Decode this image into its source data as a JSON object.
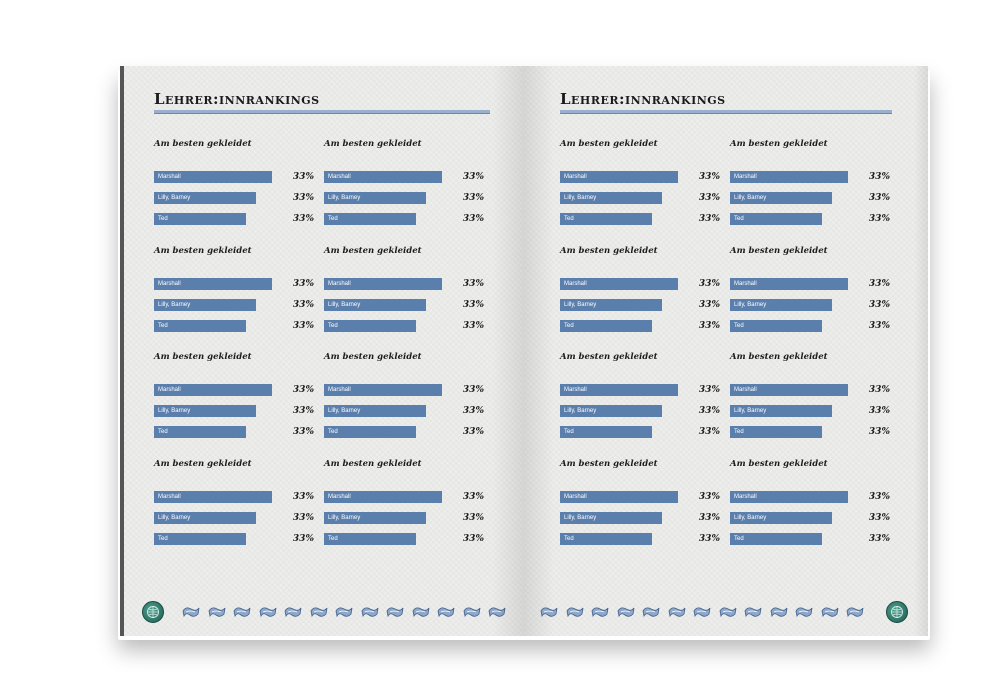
{
  "pages": [
    {
      "title": "Lehrer:innrankings",
      "blocks": [
        {
          "heading": "Am besten gekleidet",
          "items": [
            {
              "name": "Marshall",
              "pct": "33%"
            },
            {
              "name": "Lilly, Barney",
              "pct": "33%"
            },
            {
              "name": "Ted",
              "pct": "33%"
            }
          ]
        },
        {
          "heading": "Am besten gekleidet",
          "items": [
            {
              "name": "Marshall",
              "pct": "33%"
            },
            {
              "name": "Lilly, Barney",
              "pct": "33%"
            },
            {
              "name": "Ted",
              "pct": "33%"
            }
          ]
        },
        {
          "heading": "Am besten gekleidet",
          "items": [
            {
              "name": "Marshall",
              "pct": "33%"
            },
            {
              "name": "Lilly, Barney",
              "pct": "33%"
            },
            {
              "name": "Ted",
              "pct": "33%"
            }
          ]
        },
        {
          "heading": "Am besten gekleidet",
          "items": [
            {
              "name": "Marshall",
              "pct": "33%"
            },
            {
              "name": "Lilly, Barney",
              "pct": "33%"
            },
            {
              "name": "Ted",
              "pct": "33%"
            }
          ]
        },
        {
          "heading": "Am besten gekleidet",
          "items": [
            {
              "name": "Marshall",
              "pct": "33%"
            },
            {
              "name": "Lilly, Barney",
              "pct": "33%"
            },
            {
              "name": "Ted",
              "pct": "33%"
            }
          ]
        },
        {
          "heading": "Am besten gekleidet",
          "items": [
            {
              "name": "Marshall",
              "pct": "33%"
            },
            {
              "name": "Lilly, Barney",
              "pct": "33%"
            },
            {
              "name": "Ted",
              "pct": "33%"
            }
          ]
        },
        {
          "heading": "Am besten gekleidet",
          "items": [
            {
              "name": "Marshall",
              "pct": "33%"
            },
            {
              "name": "Lilly, Barney",
              "pct": "33%"
            },
            {
              "name": "Ted",
              "pct": "33%"
            }
          ]
        },
        {
          "heading": "Am besten gekleidet",
          "items": [
            {
              "name": "Marshall",
              "pct": "33%"
            },
            {
              "name": "Lilly, Barney",
              "pct": "33%"
            },
            {
              "name": "Ted",
              "pct": "33%"
            }
          ]
        }
      ]
    },
    {
      "title": "Lehrer:innrankings",
      "blocks": [
        {
          "heading": "Am besten gekleidet",
          "items": [
            {
              "name": "Marshall",
              "pct": "33%"
            },
            {
              "name": "Lilly, Barney",
              "pct": "33%"
            },
            {
              "name": "Ted",
              "pct": "33%"
            }
          ]
        },
        {
          "heading": "Am besten gekleidet",
          "items": [
            {
              "name": "Marshall",
              "pct": "33%"
            },
            {
              "name": "Lilly, Barney",
              "pct": "33%"
            },
            {
              "name": "Ted",
              "pct": "33%"
            }
          ]
        },
        {
          "heading": "Am besten gekleidet",
          "items": [
            {
              "name": "Marshall",
              "pct": "33%"
            },
            {
              "name": "Lilly, Barney",
              "pct": "33%"
            },
            {
              "name": "Ted",
              "pct": "33%"
            }
          ]
        },
        {
          "heading": "Am besten gekleidet",
          "items": [
            {
              "name": "Marshall",
              "pct": "33%"
            },
            {
              "name": "Lilly, Barney",
              "pct": "33%"
            },
            {
              "name": "Ted",
              "pct": "33%"
            }
          ]
        },
        {
          "heading": "Am besten gekleidet",
          "items": [
            {
              "name": "Marshall",
              "pct": "33%"
            },
            {
              "name": "Lilly, Barney",
              "pct": "33%"
            },
            {
              "name": "Ted",
              "pct": "33%"
            }
          ]
        },
        {
          "heading": "Am besten gekleidet",
          "items": [
            {
              "name": "Marshall",
              "pct": "33%"
            },
            {
              "name": "Lilly, Barney",
              "pct": "33%"
            },
            {
              "name": "Ted",
              "pct": "33%"
            }
          ]
        },
        {
          "heading": "Am besten gekleidet",
          "items": [
            {
              "name": "Marshall",
              "pct": "33%"
            },
            {
              "name": "Lilly, Barney",
              "pct": "33%"
            },
            {
              "name": "Ted",
              "pct": "33%"
            }
          ]
        },
        {
          "heading": "Am besten gekleidet",
          "items": [
            {
              "name": "Marshall",
              "pct": "33%"
            },
            {
              "name": "Lilly, Barney",
              "pct": "33%"
            },
            {
              "name": "Ted",
              "pct": "33%"
            }
          ]
        }
      ]
    }
  ],
  "colors": {
    "bar": "#5b7fad",
    "rule": "#9aaecd",
    "footer_icon": "#2f7a6c"
  },
  "icons": {
    "footer_emblem": "globe-emblem-icon",
    "footer_ornament": "banner-ornament-icon"
  }
}
